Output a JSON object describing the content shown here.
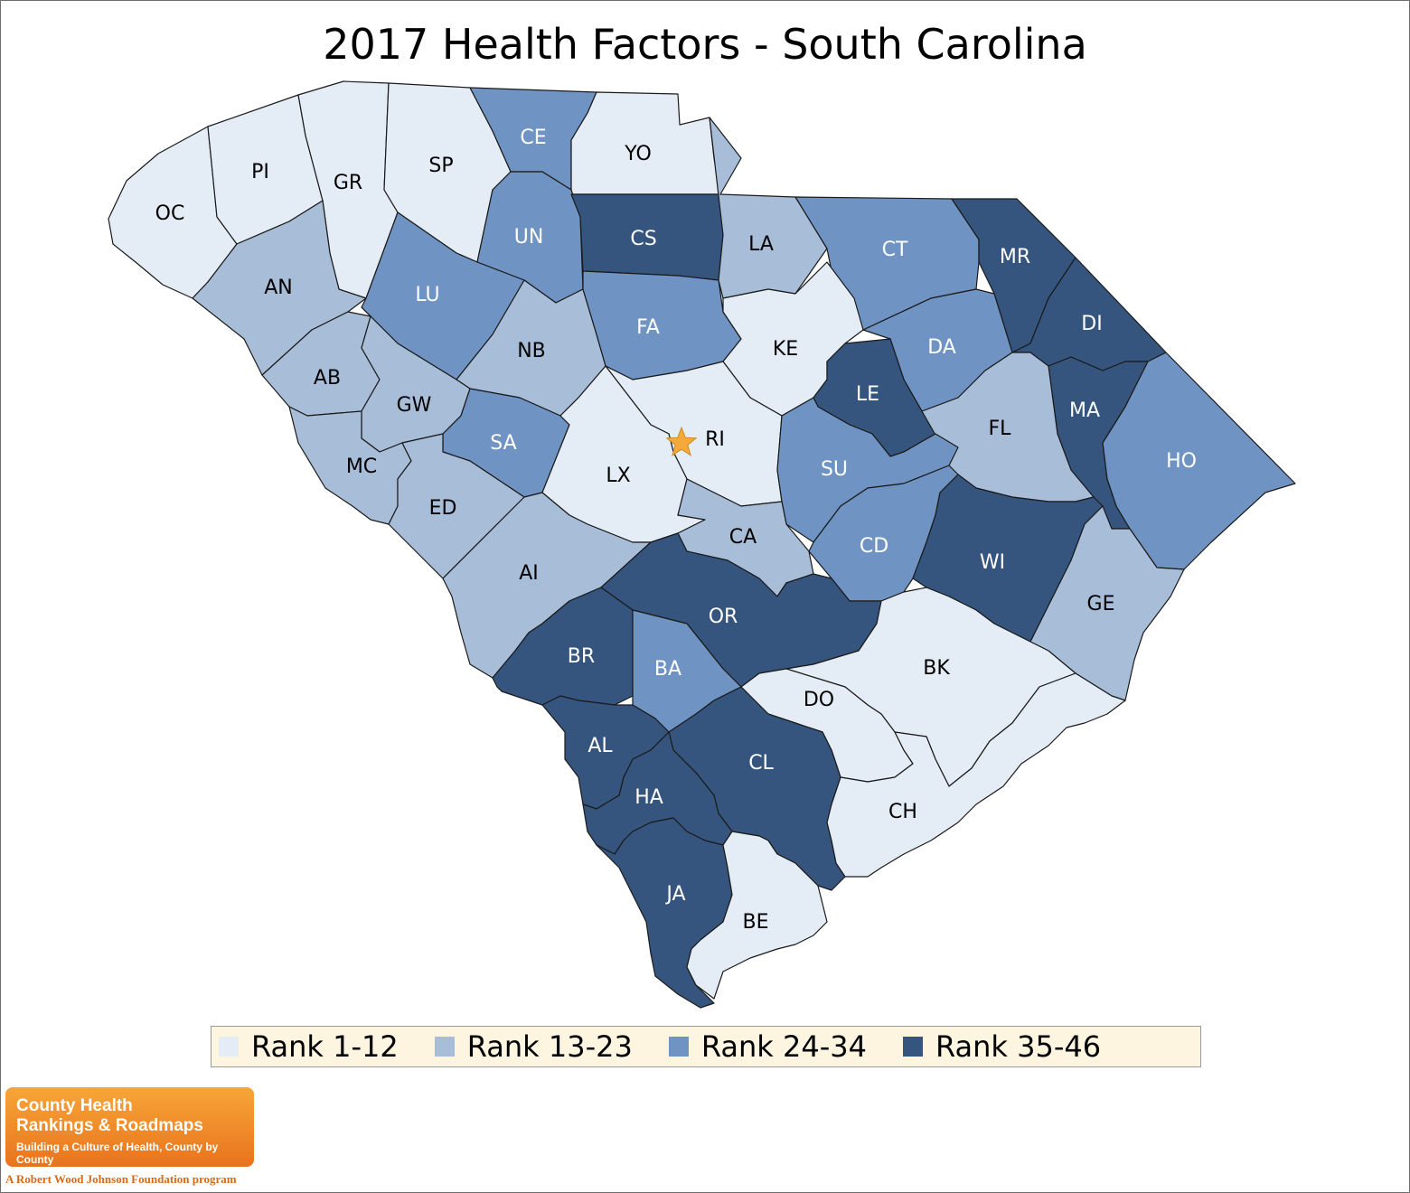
{
  "title": "2017 Health Factors - South Carolina",
  "legend": [
    {
      "label": "Rank 1-12",
      "color": "#e4ecf5"
    },
    {
      "label": "Rank 13-23",
      "color": "#a8bdd8"
    },
    {
      "label": "Rank 24-34",
      "color": "#6f93c2"
    },
    {
      "label": "Rank 35-46",
      "color": "#35557e"
    }
  ],
  "capital_marker": {
    "county": "RI",
    "color": "#f6a93b",
    "icon": "star-icon"
  },
  "counties": [
    {
      "abbr": "OC",
      "tier": 1
    },
    {
      "abbr": "PI",
      "tier": 1
    },
    {
      "abbr": "GR",
      "tier": 1
    },
    {
      "abbr": "SP",
      "tier": 1
    },
    {
      "abbr": "CE",
      "tier": 3
    },
    {
      "abbr": "YO",
      "tier": 1
    },
    {
      "abbr": "AN",
      "tier": 2
    },
    {
      "abbr": "UN",
      "tier": 3
    },
    {
      "abbr": "CS",
      "tier": 4
    },
    {
      "abbr": "LA",
      "tier": 2
    },
    {
      "abbr": "CT",
      "tier": 3
    },
    {
      "abbr": "MR",
      "tier": 4
    },
    {
      "abbr": "LU",
      "tier": 3
    },
    {
      "abbr": "AB",
      "tier": 2
    },
    {
      "abbr": "NB",
      "tier": 2
    },
    {
      "abbr": "FA",
      "tier": 3
    },
    {
      "abbr": "KE",
      "tier": 1
    },
    {
      "abbr": "DA",
      "tier": 3
    },
    {
      "abbr": "DI",
      "tier": 4
    },
    {
      "abbr": "GW",
      "tier": 2
    },
    {
      "abbr": "MC",
      "tier": 2
    },
    {
      "abbr": "SA",
      "tier": 3
    },
    {
      "abbr": "RI",
      "tier": 1
    },
    {
      "abbr": "LE",
      "tier": 4
    },
    {
      "abbr": "MA",
      "tier": 4
    },
    {
      "abbr": "FL",
      "tier": 2
    },
    {
      "abbr": "HO",
      "tier": 3
    },
    {
      "abbr": "LX",
      "tier": 1
    },
    {
      "abbr": "SU",
      "tier": 3
    },
    {
      "abbr": "ED",
      "tier": 2
    },
    {
      "abbr": "CA",
      "tier": 2
    },
    {
      "abbr": "CD",
      "tier": 3
    },
    {
      "abbr": "WI",
      "tier": 4
    },
    {
      "abbr": "AI",
      "tier": 2
    },
    {
      "abbr": "GE",
      "tier": 2
    },
    {
      "abbr": "OR",
      "tier": 4
    },
    {
      "abbr": "BR",
      "tier": 4
    },
    {
      "abbr": "BA",
      "tier": 3
    },
    {
      "abbr": "BK",
      "tier": 1
    },
    {
      "abbr": "DO",
      "tier": 1
    },
    {
      "abbr": "AL",
      "tier": 4
    },
    {
      "abbr": "CL",
      "tier": 4
    },
    {
      "abbr": "HA",
      "tier": 4
    },
    {
      "abbr": "CH",
      "tier": 1
    },
    {
      "abbr": "JA",
      "tier": 4
    },
    {
      "abbr": "BE",
      "tier": 1
    }
  ],
  "logo": {
    "line1": "County Health",
    "line2": "Rankings & Roadmaps",
    "tagline": "Building a Culture of Health, County by County",
    "program": "A Robert Wood Johnson Foundation program"
  }
}
